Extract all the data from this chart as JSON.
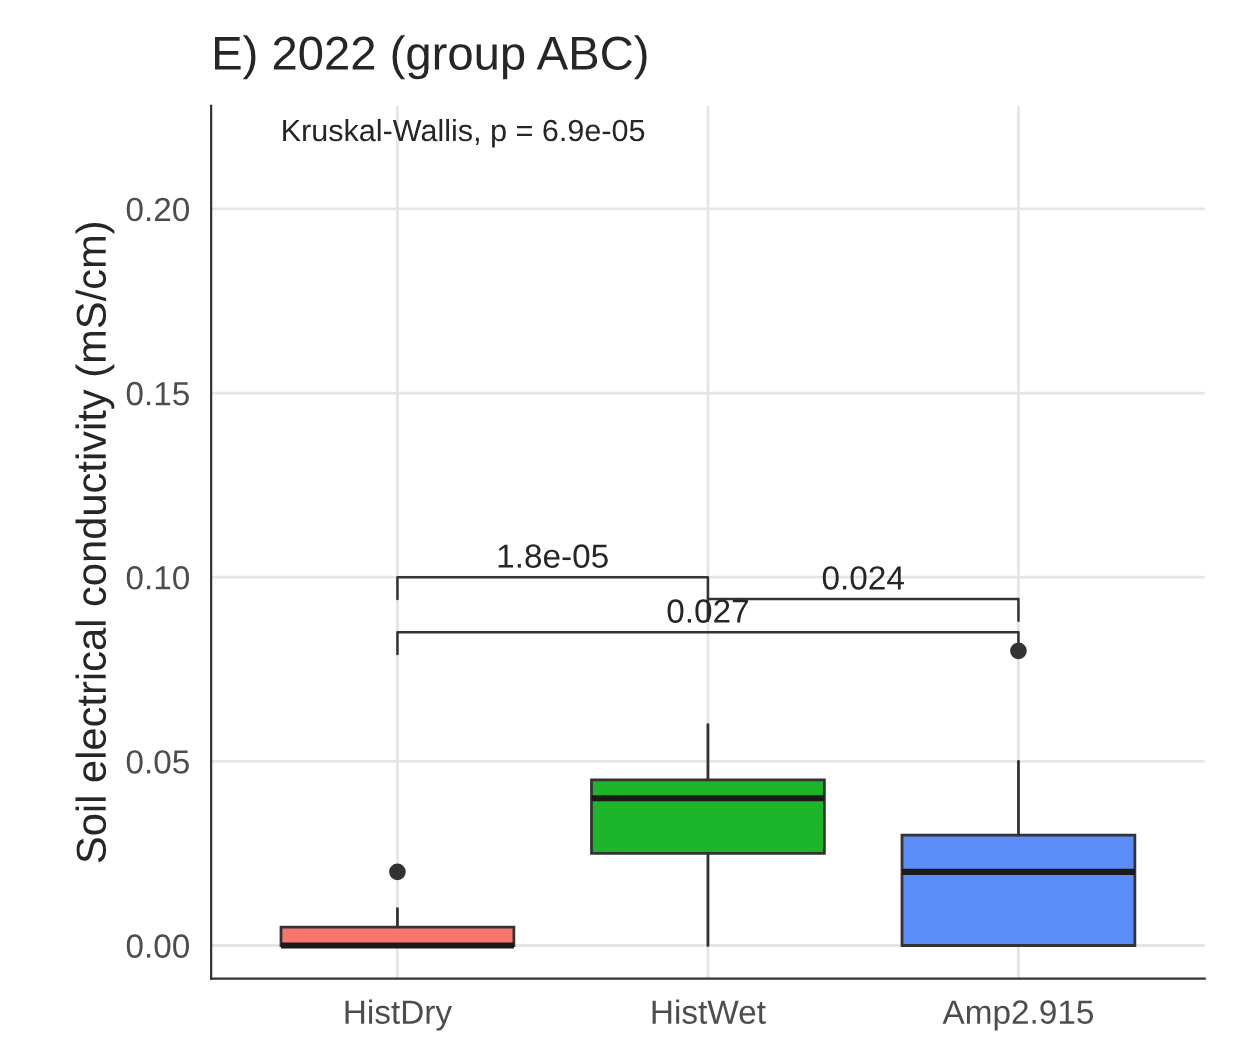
{
  "chart_data": {
    "type": "box",
    "title": "E) 2022 (group ABC)",
    "ylabel": "Soil electrical conductivity (mS/cm)",
    "categories": [
      "HistDry",
      "HistWet",
      "Amp2.915"
    ],
    "colors": [
      "#f8766d",
      "#1db52a",
      "#5b8df8"
    ],
    "boxes": [
      {
        "low": 0,
        "q1": 0,
        "median": 0,
        "q3": 0.005,
        "high": 0.01,
        "outliers": [
          0.02
        ]
      },
      {
        "low": 0,
        "q1": 0.025,
        "median": 0.04,
        "q3": 0.045,
        "high": 0.06
      },
      {
        "low": 0,
        "q1": 0,
        "median": 0.02,
        "q3": 0.03,
        "high": 0.05,
        "outliers": [
          0.08
        ]
      }
    ],
    "annotations": [
      "Kruskal-Wallis, p = 6.9e-05",
      "1.8e-05",
      "0.024",
      "0.027"
    ],
    "ylim": [
      -0.009,
      0.228
    ],
    "yticks": [
      {
        "value": 0,
        "label": "0.00"
      },
      {
        "value": 0.05,
        "label": "0.05"
      },
      {
        "value": 0.1,
        "label": "0.10"
      },
      {
        "value": 0.15,
        "label": "0.15"
      },
      {
        "value": 0.2,
        "label": "0.20"
      }
    ],
    "grid": true
  }
}
